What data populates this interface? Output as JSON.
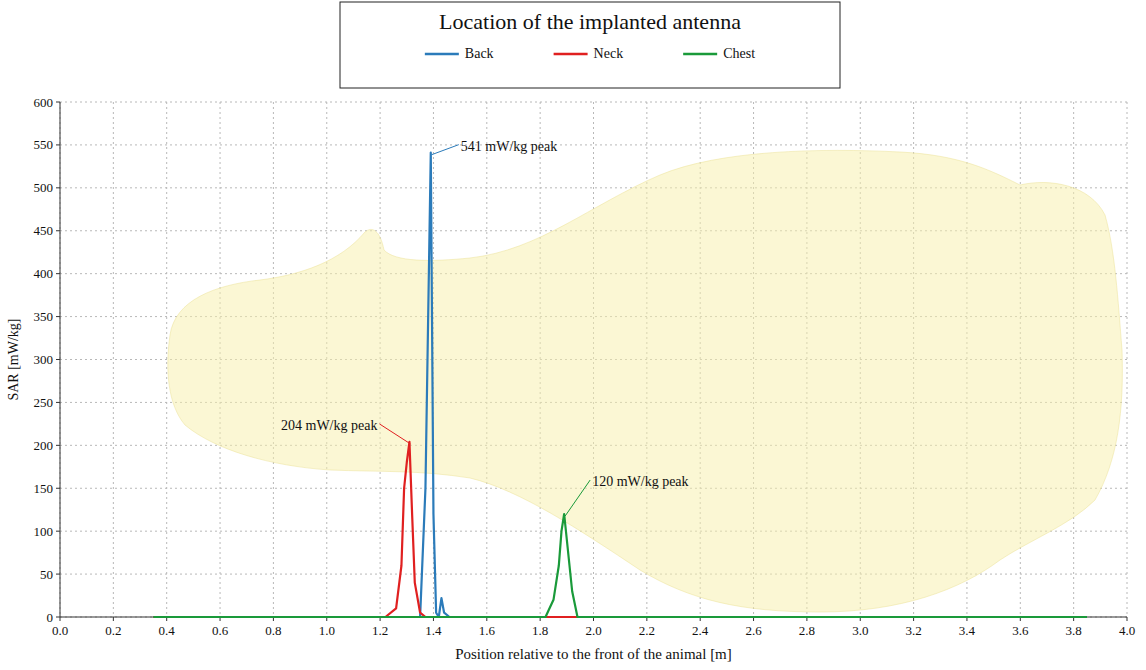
{
  "chart_data": {
    "type": "line",
    "legend_title": "Location of the implanted antenna",
    "x_label": "Position relative to the front of the animal [m]",
    "y_label": "SAR [mW/kg]",
    "xlim": [
      0,
      4
    ],
    "ylim": [
      0,
      600
    ],
    "xticks": [
      {
        "value": 0,
        "label": "0.0"
      },
      0.2,
      0.4,
      0.6,
      0.8,
      {
        "value": 1,
        "label": "1.0"
      },
      1.2,
      1.4,
      1.6,
      1.8,
      {
        "value": 2,
        "label": "2.0"
      },
      2.2,
      2.4,
      2.6,
      2.8,
      {
        "value": 3,
        "label": "3.0"
      },
      3.2,
      3.4,
      3.6,
      3.8,
      {
        "value": 4,
        "label": "4.0"
      }
    ],
    "yticks": [
      0,
      50,
      100,
      150,
      200,
      250,
      300,
      350,
      400,
      450,
      500,
      550,
      600
    ],
    "grid": true,
    "legend": "top",
    "series": [
      {
        "name": "Back",
        "color": "#2b7bba",
        "x": [
          0.35,
          1.35,
          1.37,
          1.39,
          1.4,
          1.41,
          1.42,
          1.43,
          1.44,
          1.46,
          3.85
        ],
        "values": [
          0,
          0,
          150,
          541,
          120,
          5,
          0,
          22,
          5,
          0,
          0
        ]
      },
      {
        "name": "Neck",
        "color": "#e02020",
        "x": [
          0.35,
          1.22,
          1.26,
          1.28,
          1.29,
          1.3,
          1.31,
          1.32,
          1.33,
          1.35,
          1.37,
          3.85
        ],
        "values": [
          0,
          0,
          10,
          60,
          150,
          180,
          204,
          120,
          40,
          5,
          0,
          0
        ]
      },
      {
        "name": "Chest",
        "color": "#1a9a3a",
        "x": [
          0.35,
          1.82,
          1.85,
          1.87,
          1.88,
          1.89,
          1.9,
          1.92,
          1.94,
          3.85
        ],
        "values": [
          0,
          0,
          20,
          60,
          100,
          120,
          90,
          30,
          0,
          0
        ]
      }
    ],
    "annotations": [
      {
        "text": "541 mW/kg peak",
        "x": 1.39,
        "y": 541
      },
      {
        "text": "204 mW/kg peak",
        "x": 1.31,
        "y": 204
      },
      {
        "text": "120 mW/kg peak",
        "x": 1.89,
        "y": 120
      }
    ]
  }
}
